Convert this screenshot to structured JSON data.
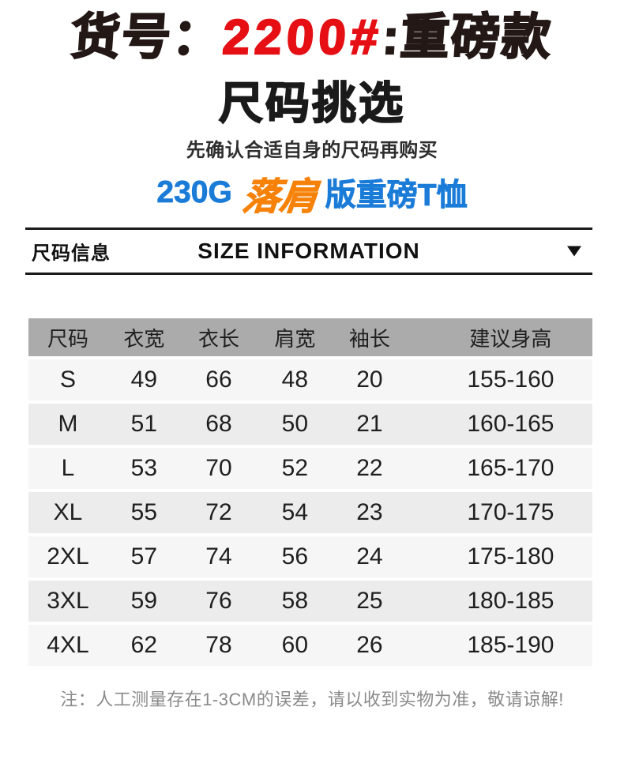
{
  "header": {
    "product_code_prefix": "货号：",
    "product_code_number": "2200#",
    "product_code_suffix": ":重磅款",
    "title": "尺码挑选",
    "subtitle": "先确认合适自身的尺码再购买",
    "highlight": {
      "weight": "230G",
      "style": "落肩",
      "suffix": "版重磅T恤"
    }
  },
  "size_bar": {
    "label_cn": "尺码信息",
    "label_en": "SIZE INFORMATION",
    "dropdown_icon": "triangle-down"
  },
  "table": {
    "columns": [
      "尺码",
      "衣宽",
      "衣长",
      "肩宽",
      "袖长",
      "建议身高"
    ],
    "rows": [
      [
        "S",
        "49",
        "66",
        "48",
        "20",
        "155-160"
      ],
      [
        "M",
        "51",
        "68",
        "50",
        "21",
        "160-165"
      ],
      [
        "L",
        "53",
        "70",
        "52",
        "22",
        "165-170"
      ],
      [
        "XL",
        "55",
        "72",
        "54",
        "23",
        "170-175"
      ],
      [
        "2XL",
        "57",
        "74",
        "56",
        "24",
        "175-180"
      ],
      [
        "3XL",
        "59",
        "76",
        "58",
        "25",
        "180-185"
      ],
      [
        "4XL",
        "62",
        "78",
        "60",
        "26",
        "185-190"
      ]
    ]
  },
  "footnote": "注：人工测量存在1-3CM的误差，请以收到实物为准，敬请谅解!",
  "colors": {
    "accent_red": "#e50f14",
    "accent_blue": "#1b7cd8",
    "accent_orange": "#f6820a",
    "table_header_gray": "#ababab",
    "row_light": "#f6f6f6",
    "row_dark": "#ececec",
    "rule_black": "#1a1a1a",
    "note_gray": "#8a8a8a"
  }
}
